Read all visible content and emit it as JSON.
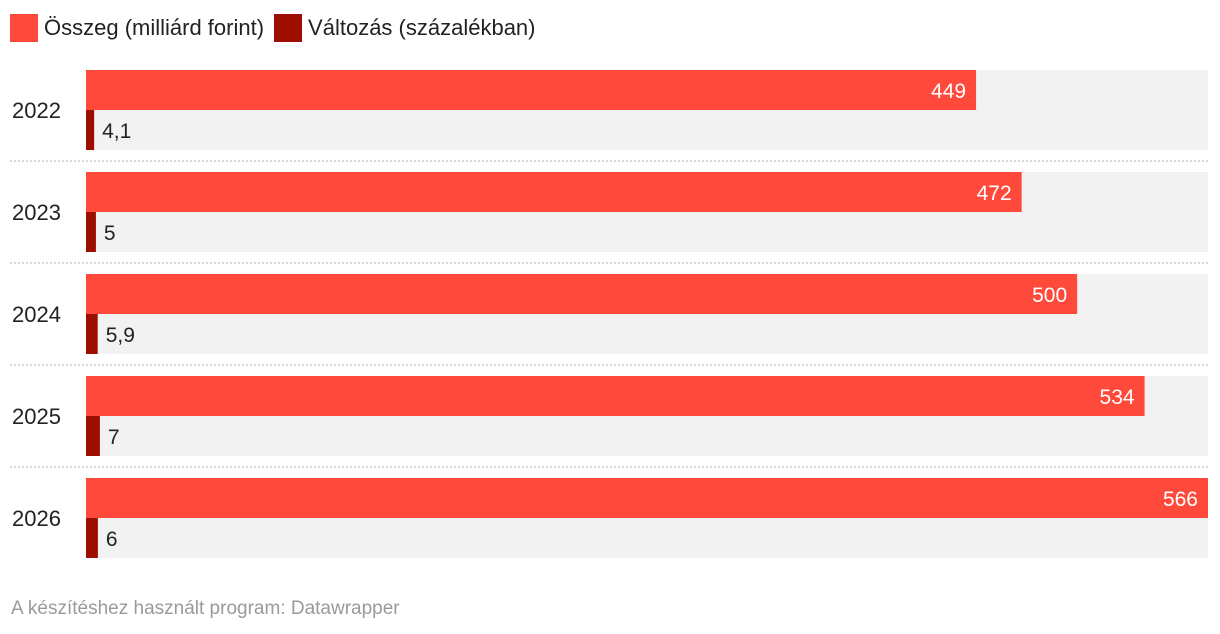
{
  "legend": {
    "series_a_label": "Összeg (milliárd forint)",
    "series_b_label": "Változás (százalékban)"
  },
  "footer": {
    "text": "A készítéshez használt program: Datawrapper"
  },
  "colors": {
    "amount": "#ff4a3b",
    "change": "#9c0e00",
    "track": "#f2f2f2",
    "divider": "#cccccc",
    "value_inside": "#ffffff",
    "value_outside": "#222222"
  },
  "chart_data": {
    "type": "bar",
    "orientation": "horizontal",
    "categories": [
      "2022",
      "2023",
      "2024",
      "2025",
      "2026"
    ],
    "series": [
      {
        "name": "Összeg (milliárd forint)",
        "values": [
          449,
          472,
          500,
          534,
          566
        ],
        "labels": [
          "449",
          "472",
          "500",
          "534",
          "566"
        ]
      },
      {
        "name": "Változás (százalékban)",
        "values": [
          4.1,
          5,
          5.9,
          7,
          6
        ],
        "labels": [
          "4,1",
          "5",
          "5,9",
          "7",
          "6"
        ]
      }
    ],
    "xlim": [
      0,
      566
    ],
    "legend_position": "top-left",
    "grid": false
  }
}
